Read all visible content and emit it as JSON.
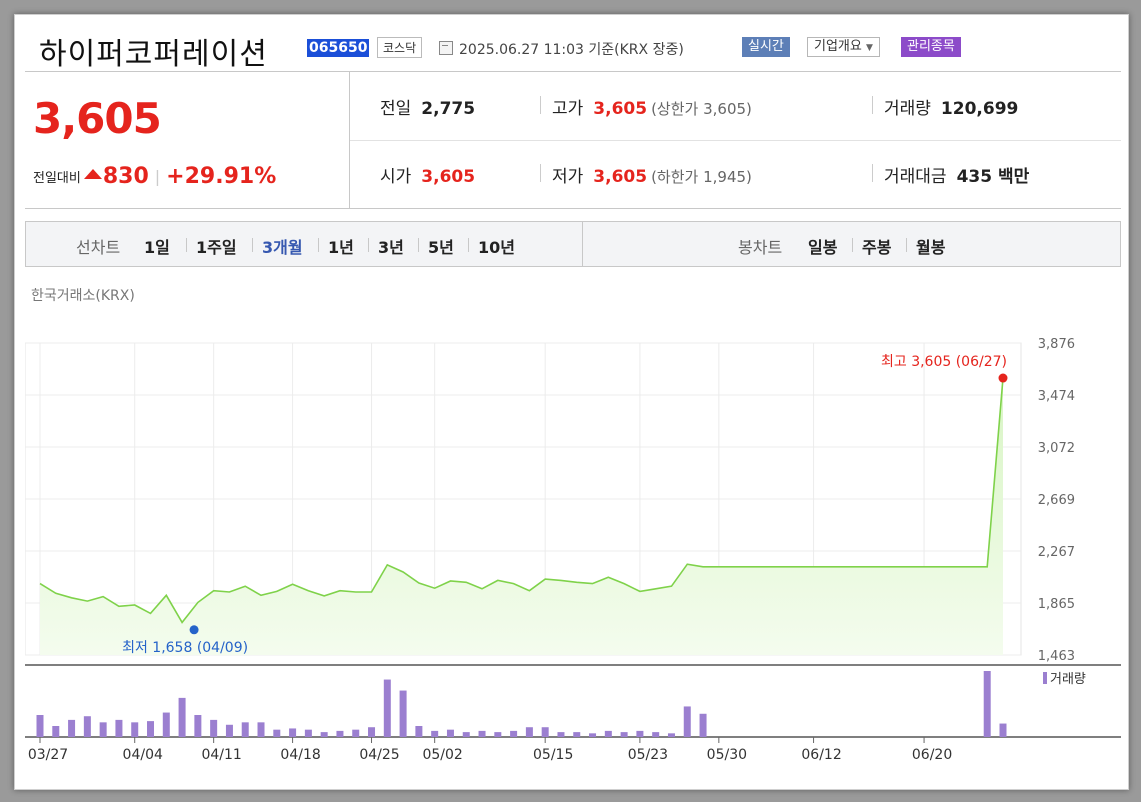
{
  "header": {
    "company": "하이퍼코퍼레이션",
    "code": "065650",
    "market": "코스닥",
    "as_of": "2025.06.27 11:03 기준(KRX 장중)",
    "realtime": "실시간",
    "company_info": "기업개요",
    "managed": "관리종목"
  },
  "price": {
    "current": "3,605",
    "change_label": "전일대비",
    "change": "830",
    "change_pct": "+29.91%",
    "prev_close_label": "전일",
    "prev_close": "2,775",
    "high_label": "고가",
    "high": "3,605",
    "upper_limit": "(상한가 3,605)",
    "volume_label": "거래량",
    "volume": "120,699",
    "open_label": "시가",
    "open": "3,605",
    "low_label": "저가",
    "low": "3,605",
    "lower_limit": "(하한가 1,945)",
    "amount_label": "거래대금",
    "amount": "435 백만"
  },
  "tabs": {
    "line_label": "선차트",
    "line": [
      "1일",
      "1주일",
      "3개월",
      "1년",
      "3년",
      "5년",
      "10년"
    ],
    "active": "3개월",
    "candle_label": "봉차트",
    "candle": [
      "일봉",
      "주봉",
      "월봉"
    ]
  },
  "exchange_label": "한국거래소(KRX)",
  "colors": {
    "up": "#e5241d",
    "line": "#7fd24a",
    "fill_top": "#d8f5c4",
    "fill_bottom": "#f4fcee",
    "volume": "#9b7fd0",
    "low_marker": "#2563c9"
  },
  "chart_data": {
    "type": "area",
    "title": "",
    "y_ticks": [
      "3,876",
      "3,474",
      "3,072",
      "2,669",
      "2,267",
      "1,865",
      "1,463"
    ],
    "ylim": [
      1463,
      3876
    ],
    "x_ticks": [
      "03/27",
      "04/04",
      "04/11",
      "04/18",
      "04/25",
      "05/02",
      "05/15",
      "05/23",
      "05/30",
      "06/12",
      "06/20"
    ],
    "x_tick_index": [
      0,
      6,
      11,
      16,
      21,
      25,
      32,
      38,
      43,
      49,
      56
    ],
    "price": [
      2015,
      1940,
      1905,
      1880,
      1915,
      1840,
      1850,
      1785,
      1925,
      1715,
      1870,
      1960,
      1950,
      1995,
      1925,
      1955,
      2010,
      1960,
      1920,
      1960,
      1950,
      1950,
      2160,
      2105,
      2020,
      1980,
      2035,
      2025,
      1975,
      2040,
      2015,
      1960,
      2050,
      2040,
      2025,
      2015,
      2065,
      2015,
      1955,
      1975,
      1995,
      2165,
      2145,
      2145,
      2145,
      2145,
      2145,
      2145,
      2145,
      2145,
      2145,
      2145,
      2145,
      2145,
      2145,
      2145,
      2145,
      2145,
      2145,
      2145,
      2145,
      3605
    ],
    "volume_legend": "거래량",
    "volume": [
      18,
      9,
      14,
      17,
      12,
      14,
      12,
      13,
      20,
      32,
      18,
      14,
      10,
      12,
      12,
      6,
      7,
      6,
      4,
      5,
      6,
      8,
      47,
      38,
      9,
      5,
      6,
      4,
      5,
      4,
      5,
      8,
      8,
      4,
      4,
      3,
      5,
      4,
      5,
      4,
      3,
      25,
      19,
      0,
      0,
      0,
      0,
      0,
      0,
      0,
      0,
      0,
      0,
      0,
      0,
      0,
      0,
      0,
      0,
      0,
      54,
      11
    ],
    "vol_index": [
      0,
      1,
      2,
      3,
      4,
      5,
      6,
      7,
      8,
      9,
      10,
      11,
      12,
      13,
      14,
      15,
      16,
      17,
      18,
      19,
      20,
      21,
      22,
      23,
      24,
      25,
      26,
      27,
      28,
      29,
      30,
      31,
      32,
      33,
      34,
      35,
      36,
      37,
      38,
      39,
      40,
      41,
      42,
      43,
      44,
      45,
      46,
      47,
      48,
      49,
      50,
      51,
      52,
      53,
      54,
      55,
      56,
      57,
      58,
      59,
      60,
      61
    ],
    "high_annotation": "최고 3,605 (06/27)",
    "low_annotation": "최저 1,658 (04/09)",
    "low_value": 1658,
    "low_index": 9
  }
}
